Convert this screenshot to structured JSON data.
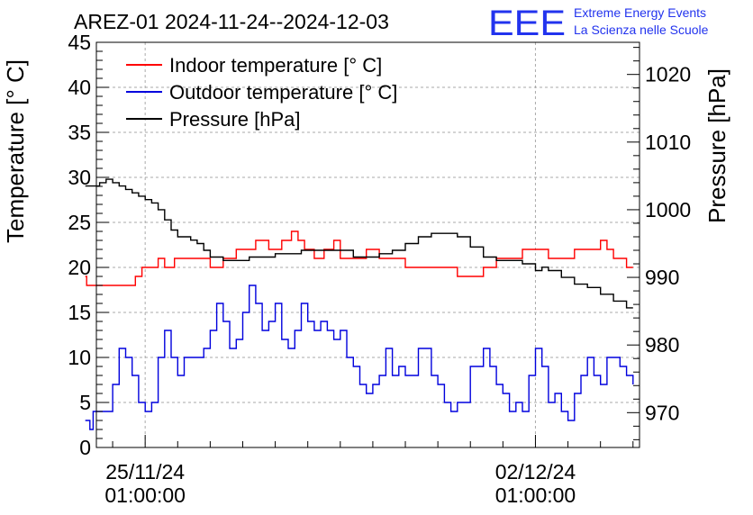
{
  "chart_data": {
    "type": "line",
    "title": "AREZ-01 2024-11-24--2024-12-03",
    "logo": {
      "text": "EEE",
      "line1": "Extreme Energy Events",
      "line2": "La Scienza nelle Scuole",
      "color": "#2233ee"
    },
    "xlabel": "",
    "ylabel": "Temperature [° C]",
    "y2label": "Pressure [hPa]",
    "ylim": [
      0,
      45
    ],
    "y2lim": [
      964.85,
      1024.75
    ],
    "xlim": [
      -0.75,
      7.6
    ],
    "yticks": [
      0,
      5,
      10,
      15,
      20,
      25,
      30,
      35,
      40,
      45
    ],
    "y2ticks": [
      970,
      980,
      990,
      1000,
      1010,
      1020
    ],
    "xticks": [
      {
        "x": 0,
        "date": "25/11/24",
        "time": "01:00:00"
      },
      {
        "x": 6,
        "date": "02/12/24",
        "time": "01:00:00"
      }
    ],
    "grid": true,
    "legend_position": "top-left",
    "series": [
      {
        "name": "Indoor temperature [° C]",
        "color": "#ff0000",
        "axis": "left",
        "x": [
          -0.92,
          -0.9,
          -0.5,
          -0.25,
          -0.2,
          -0.15,
          -0.05,
          0.2,
          0.3,
          0.45,
          0.6,
          0.75,
          1.0,
          1.2,
          1.4,
          1.7,
          1.9,
          2.1,
          2.25,
          2.35,
          2.45,
          2.6,
          2.75,
          2.9,
          3.0,
          3.2,
          3.4,
          3.6,
          3.8,
          4.0,
          4.2,
          4.4,
          4.6,
          4.8,
          5.0,
          5.2,
          5.4,
          5.6,
          5.8,
          6.0,
          6.2,
          6.4,
          6.6,
          6.8,
          7.0,
          7.1,
          7.2,
          7.3,
          7.4,
          7.5
        ],
        "values": [
          19,
          18,
          18,
          18,
          18,
          19,
          20,
          21,
          20,
          21,
          21,
          21,
          20,
          21,
          22,
          23,
          22,
          23,
          24,
          23,
          22,
          21,
          22,
          23,
          21,
          21,
          22,
          21,
          21,
          20,
          20,
          20,
          20,
          19,
          19,
          20,
          21,
          21,
          22,
          22,
          21,
          21,
          22,
          22,
          23,
          22,
          21,
          21,
          20,
          20
        ]
      },
      {
        "name": "Outdoor temperature [° C]",
        "color": "#0000dd",
        "axis": "left",
        "x": [
          -0.92,
          -0.85,
          -0.8,
          -0.6,
          -0.5,
          -0.4,
          -0.3,
          -0.2,
          -0.1,
          0.0,
          0.1,
          0.2,
          0.3,
          0.4,
          0.5,
          0.6,
          0.7,
          0.8,
          0.9,
          1.0,
          1.1,
          1.2,
          1.3,
          1.4,
          1.5,
          1.6,
          1.7,
          1.8,
          1.9,
          2.0,
          2.1,
          2.2,
          2.3,
          2.4,
          2.5,
          2.6,
          2.7,
          2.8,
          2.9,
          3.0,
          3.1,
          3.2,
          3.3,
          3.4,
          3.5,
          3.6,
          3.7,
          3.8,
          3.9,
          4.0,
          4.2,
          4.4,
          4.5,
          4.6,
          4.7,
          4.8,
          5.0,
          5.2,
          5.3,
          5.4,
          5.5,
          5.6,
          5.7,
          5.8,
          5.9,
          6.0,
          6.1,
          6.2,
          6.3,
          6.4,
          6.5,
          6.6,
          6.7,
          6.8,
          6.9,
          7.0,
          7.1,
          7.2,
          7.3,
          7.4,
          7.5
        ],
        "values": [
          3,
          2,
          4,
          4,
          7,
          11,
          10,
          8,
          5,
          4,
          5,
          10,
          13,
          10,
          8,
          10,
          10,
          10,
          11,
          13,
          16,
          14,
          11,
          12,
          15,
          18,
          16,
          13,
          14,
          16,
          12,
          11,
          13,
          16,
          14,
          13,
          14,
          13,
          12,
          13,
          10,
          9,
          7,
          6,
          7,
          8,
          11,
          8,
          9,
          8,
          11,
          8,
          7,
          5,
          4,
          5,
          9,
          11,
          9,
          7,
          6,
          4,
          5,
          4,
          8,
          11,
          9,
          5,
          6,
          4,
          3,
          6,
          8,
          10,
          8,
          7,
          10,
          10,
          9,
          8,
          7
        ]
      },
      {
        "name": "Pressure [hPa]",
        "color": "#000000",
        "axis": "right",
        "x": [
          -0.92,
          -0.8,
          -0.7,
          -0.6,
          -0.5,
          -0.4,
          -0.3,
          -0.2,
          -0.1,
          0.0,
          0.1,
          0.2,
          0.3,
          0.4,
          0.5,
          0.6,
          0.7,
          0.8,
          0.9,
          1.0,
          1.2,
          1.4,
          1.6,
          1.8,
          2.0,
          2.2,
          2.4,
          2.6,
          2.8,
          3.0,
          3.2,
          3.4,
          3.6,
          3.8,
          4.0,
          4.2,
          4.4,
          4.6,
          4.8,
          5.0,
          5.2,
          5.4,
          5.6,
          5.8,
          6.0,
          6.1,
          6.2,
          6.4,
          6.6,
          6.8,
          7.0,
          7.2,
          7.4,
          7.5
        ],
        "values": [
          1003.5,
          1003.5,
          1004,
          1004.5,
          1004,
          1003.5,
          1003,
          1002.5,
          1002,
          1001.5,
          1001,
          1000,
          998.5,
          997,
          996,
          996,
          995.5,
          995,
          994,
          993,
          992.5,
          992.5,
          993,
          993,
          993.5,
          993.5,
          994,
          994,
          994,
          994,
          993,
          993,
          993.5,
          994,
          995,
          996,
          996.5,
          996.5,
          996,
          994.5,
          993,
          992.5,
          992.5,
          992,
          991,
          991.5,
          991,
          990,
          989,
          988.5,
          987.5,
          986.5,
          985.5,
          985.5
        ]
      }
    ]
  }
}
